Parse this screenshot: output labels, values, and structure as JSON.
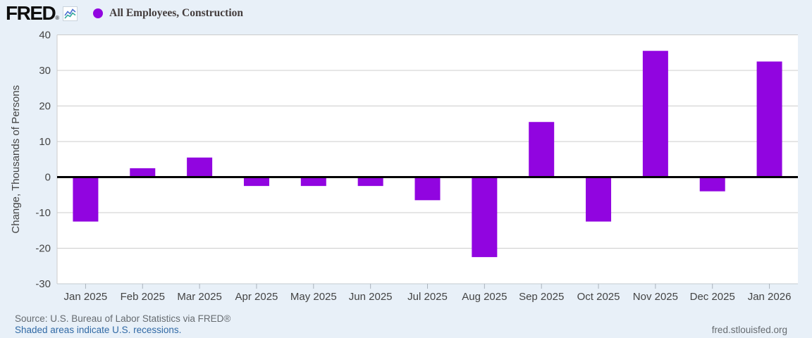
{
  "header": {
    "logo_text": "FRED",
    "logo_registered": "®",
    "legend": {
      "marker_color": "#9105E0",
      "series_label": "All Employees, Construction"
    }
  },
  "chart_data": {
    "type": "bar",
    "title": "All Employees, Construction",
    "categories": [
      "Jan 2025",
      "Feb 2025",
      "Mar 2025",
      "Apr 2025",
      "May 2025",
      "Jun 2025",
      "Jul 2025",
      "Aug 2025",
      "Sep 2025",
      "Oct 2025",
      "Nov 2025",
      "Dec 2025",
      "Jan 2026"
    ],
    "values": [
      -12.5,
      2.5,
      5.5,
      -2.5,
      -2.5,
      -2.5,
      -6.5,
      -22.5,
      15.5,
      -12.5,
      35.5,
      -4,
      32.5
    ],
    "xlabel": "",
    "ylabel": "Change, Thousands of Persons",
    "ylim": [
      -30,
      40
    ],
    "yticks": [
      40,
      30,
      20,
      10,
      0,
      -10,
      -20,
      -30
    ],
    "grid": true,
    "legend_position": "top-left",
    "bar_color": "#9105E0",
    "zero_line_color": "#000000",
    "gridline_color": "#cccccc",
    "axis_text_color": "#444444",
    "plot_background": "#ffffff"
  },
  "footer": {
    "source_text": "Source: U.S. Bureau of Labor Statistics via FRED®",
    "recession_note": "Shaded areas indicate U.S. recessions.",
    "site_link": "fred.stlouisfed.org"
  },
  "colors": {
    "background": "#E8F0F8"
  }
}
